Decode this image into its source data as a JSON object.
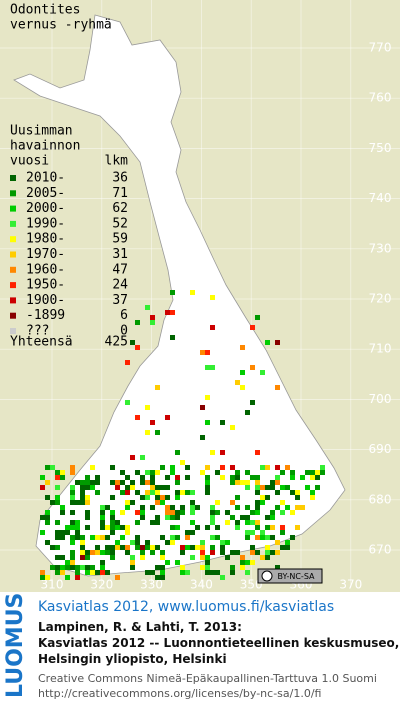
{
  "title": [
    "Odontites",
    "vernus -ryhmä"
  ],
  "legend": {
    "header": [
      "Uusimman",
      "havainnon"
    ],
    "year_heading": "vuosi",
    "count_heading": "lkm",
    "rows": [
      {
        "label": "2010-",
        "count": 36,
        "color": "#006400"
      },
      {
        "label": "2005-",
        "count": 71,
        "color": "#009a00"
      },
      {
        "label": "2000-",
        "count": 62,
        "color": "#00cc00"
      },
      {
        "label": "1990-",
        "count": 52,
        "color": "#33ee33"
      },
      {
        "label": "1980-",
        "count": 59,
        "color": "#ffff00"
      },
      {
        "label": "1970-",
        "count": 31,
        "color": "#ffcc00"
      },
      {
        "label": "1960-",
        "count": 47,
        "color": "#ff8800"
      },
      {
        "label": "1950-",
        "count": 24,
        "color": "#ff2200"
      },
      {
        "label": "1900-",
        "count": 37,
        "color": "#cc0000"
      },
      {
        "label": "-1899",
        "count": 6,
        "color": "#880000"
      },
      {
        "label": "???",
        "count": 0,
        "color": "#cccccc"
      }
    ],
    "total_label": "Yhteensä",
    "total": 425
  },
  "map_grid": {
    "y_labels": [
      770,
      760,
      750,
      740,
      730,
      720,
      710,
      700,
      690,
      680,
      670
    ],
    "x_labels": [
      310,
      320,
      330,
      340,
      350,
      360,
      370
    ]
  },
  "license_badge": "BY-NC-SA",
  "footer": {
    "logo": "LUOMUS",
    "link": "Kasviatlas 2012, www.luomus.fi/kasviatlas",
    "citation": [
      "Lampinen, R. & Lahti, T. 2013:",
      "Kasviatlas 2012 -- Luonnontieteellinen keskusmuseo,",
      "Helsingin yliopisto, Helsinki"
    ],
    "license": [
      "Creative Commons Nimeä-Epäkaupallinen-Tarttuva 1.0 Suomi",
      "http://creativecommons.org/licenses/by-nc-sa/1.0/fi"
    ]
  }
}
